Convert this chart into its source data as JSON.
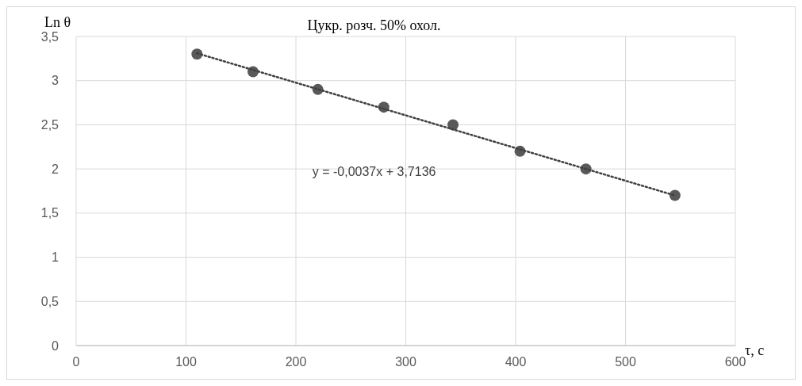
{
  "chart_data": {
    "type": "scatter",
    "title": "Цукр. розч. 50% охол.",
    "xlabel": "τ, с",
    "ylabel": "Ln θ",
    "annotations": [
      "y = -0,0037x + 3,7136"
    ],
    "xlim": [
      0,
      600
    ],
    "xticks": [
      0,
      100,
      200,
      300,
      400,
      500,
      600
    ],
    "ylim": [
      0,
      3.5
    ],
    "yticks": [
      0,
      {
        "value": 0.5,
        "label": "0,5"
      },
      1,
      {
        "value": 1.5,
        "label": "1,5"
      },
      2,
      {
        "value": 2.5,
        "label": "2,5"
      },
      3,
      {
        "value": 3.5,
        "label": "3,5"
      }
    ],
    "grid": true,
    "marker": "circle",
    "series": [
      {
        "color": "#595959",
        "x": [
          110,
          161,
          220,
          280,
          343,
          404,
          464,
          545
        ],
        "values": [
          3.3,
          3.1,
          2.9,
          2.7,
          2.5,
          2.2,
          2.0,
          1.7
        ]
      },
      {
        "type": "line",
        "color": "#404040",
        "line_style": "dotted",
        "marker": "none",
        "x": [
          110,
          545
        ],
        "values": [
          3.31,
          1.7
        ]
      }
    ]
  }
}
